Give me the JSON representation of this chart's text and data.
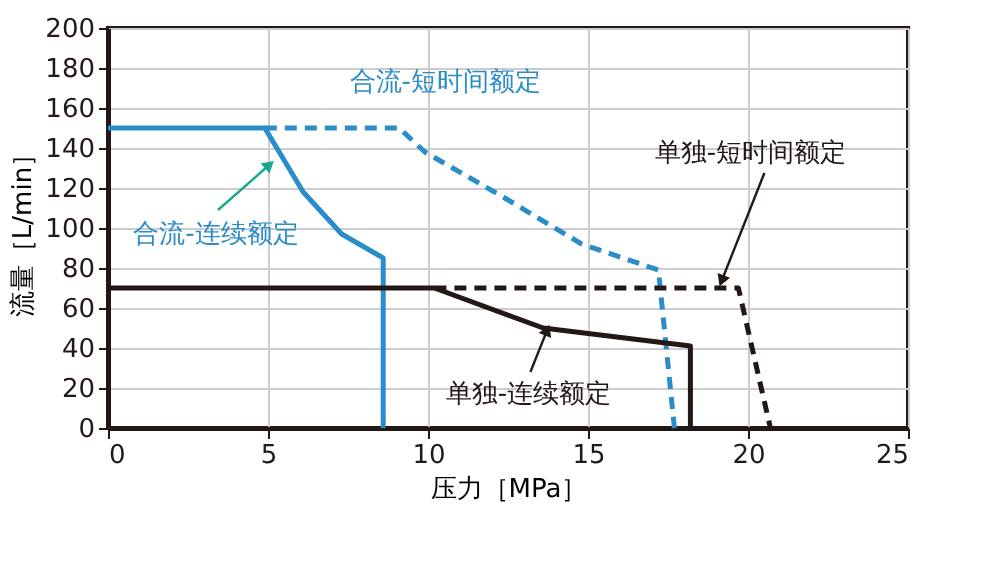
{
  "chart_data": {
    "type": "line",
    "xlabel": "压力［MPa］",
    "ylabel": "流量［L/min］",
    "xlim": [
      0,
      25
    ],
    "ylim": [
      0,
      200
    ],
    "xticks": [
      0,
      5,
      10,
      15,
      20,
      25
    ],
    "yticks": [
      0,
      20,
      40,
      60,
      80,
      100,
      120,
      140,
      160,
      180,
      200
    ],
    "grid": true,
    "marker": "none",
    "series": [
      {
        "color": "#2a8cc8",
        "line_style": "solid",
        "x": [
          0,
          4.9,
          6.1,
          7.3,
          8.6,
          8.6
        ],
        "values": [
          150,
          150,
          118,
          97,
          85,
          0
        ]
      },
      {
        "color": "#2a8cc8",
        "line_style": "dashed",
        "x": [
          4.9,
          9.1,
          9.9,
          12.4,
          14.8,
          17.2,
          17.7
        ],
        "values": [
          150,
          150,
          138,
          115,
          92,
          79,
          0
        ]
      },
      {
        "color": "#231815",
        "line_style": "solid",
        "x": [
          0,
          10.2,
          13.6,
          18.2,
          18.2
        ],
        "values": [
          70,
          70,
          50,
          41,
          0
        ]
      },
      {
        "color": "#231815",
        "line_style": "dashed",
        "x": [
          10.2,
          19.7,
          20.7
        ],
        "values": [
          70,
          70,
          0
        ]
      }
    ],
    "annotations": [
      {
        "text": "合流-短时间额定",
        "x": 9.1,
        "y": 150
      },
      {
        "text": "合流-连续额定",
        "x": 5.0,
        "y": 131
      },
      {
        "text": "单独-短时间额定",
        "x": 19.2,
        "y": 74.5
      },
      {
        "text": "单独-连续额定",
        "x": 13.7,
        "y": 48
      }
    ]
  }
}
